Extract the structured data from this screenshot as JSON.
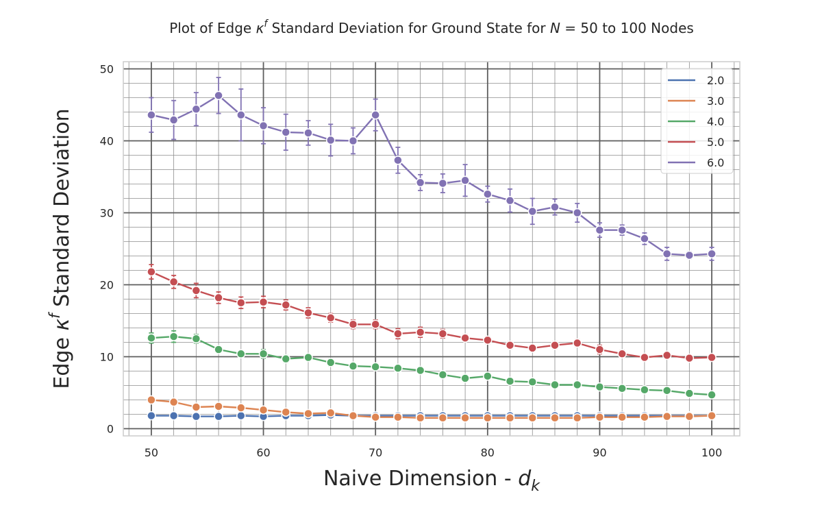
{
  "chart_data": {
    "type": "line",
    "title": {
      "prefix": "Plot of Edge ",
      "kappa": "κ",
      "sup": "f",
      "middle": " Standard Deviation for Ground State for ",
      "n_symbol": "N",
      "suffix": " = 50 to 100 Nodes"
    },
    "xlabel": {
      "text": "Naive Dimension - ",
      "var": "d",
      "sub": "k"
    },
    "ylabel": {
      "prefix": "Edge ",
      "kappa": "κ",
      "sup": "f",
      "suffix": " Standard Deviation"
    },
    "xlim": [
      47.5,
      102.5
    ],
    "ylim": [
      -1,
      51
    ],
    "x_major_ticks": [
      50,
      60,
      70,
      80,
      90,
      100
    ],
    "y_major_ticks": [
      0,
      10,
      20,
      30,
      40,
      50
    ],
    "x_minor_step": 2,
    "y_minor_step": 2,
    "grid": true,
    "legend_position": "top-right",
    "x": [
      50,
      52,
      54,
      56,
      58,
      60,
      62,
      64,
      66,
      68,
      70,
      72,
      74,
      76,
      78,
      80,
      82,
      84,
      86,
      88,
      90,
      92,
      94,
      96,
      98,
      100
    ],
    "series": [
      {
        "name": "2.0",
        "color": "#4c72b0",
        "values": [
          1.8,
          1.8,
          1.7,
          1.7,
          1.8,
          1.7,
          1.8,
          1.8,
          1.9,
          1.8,
          1.8,
          1.8,
          1.8,
          1.8,
          1.8,
          1.8,
          1.8,
          1.8,
          1.8,
          1.8,
          1.8,
          1.8,
          1.8,
          1.8,
          1.8,
          1.8
        ],
        "errors": [
          0.1,
          0.1,
          0.1,
          0.1,
          0.1,
          0.1,
          0.1,
          0.1,
          0.1,
          0.1,
          0.1,
          0.1,
          0.1,
          0.1,
          0.1,
          0.1,
          0.1,
          0.1,
          0.1,
          0.1,
          0.1,
          0.1,
          0.1,
          0.1,
          0.1,
          0.1
        ]
      },
      {
        "name": "3.0",
        "color": "#dd8452",
        "values": [
          4.0,
          3.7,
          3.0,
          3.1,
          2.9,
          2.6,
          2.3,
          2.1,
          2.2,
          1.8,
          1.6,
          1.6,
          1.5,
          1.5,
          1.5,
          1.5,
          1.5,
          1.5,
          1.5,
          1.5,
          1.6,
          1.6,
          1.6,
          1.7,
          1.7,
          1.8
        ],
        "errors": [
          0.3,
          0.4,
          0.3,
          0.3,
          0.3,
          0.3,
          0.3,
          0.3,
          0.3,
          0.2,
          0.2,
          0.2,
          0.2,
          0.2,
          0.2,
          0.2,
          0.2,
          0.2,
          0.2,
          0.2,
          0.2,
          0.2,
          0.2,
          0.2,
          0.2,
          0.2
        ]
      },
      {
        "name": "4.0",
        "color": "#55a868",
        "values": [
          12.6,
          12.8,
          12.5,
          11.0,
          10.4,
          10.4,
          9.7,
          9.9,
          9.2,
          8.7,
          8.6,
          8.4,
          8.1,
          7.5,
          7.0,
          7.3,
          6.6,
          6.5,
          6.1,
          6.1,
          5.8,
          5.6,
          5.4,
          5.3,
          4.9,
          4.7
        ],
        "errors": [
          0.7,
          0.8,
          0.6,
          0.4,
          0.4,
          0.6,
          0.5,
          0.4,
          0.5,
          0.4,
          0.4,
          0.4,
          0.4,
          0.4,
          0.3,
          0.4,
          0.4,
          0.3,
          0.3,
          0.3,
          0.3,
          0.3,
          0.3,
          0.3,
          0.3,
          0.3
        ]
      },
      {
        "name": "5.0",
        "color": "#c44e52",
        "values": [
          21.8,
          20.4,
          19.2,
          18.2,
          17.5,
          17.6,
          17.2,
          16.1,
          15.4,
          14.5,
          14.5,
          13.2,
          13.4,
          13.2,
          12.6,
          12.3,
          11.6,
          11.2,
          11.6,
          11.9,
          11.0,
          10.4,
          9.9,
          10.2,
          9.8,
          9.9
        ],
        "errors": [
          1.0,
          0.9,
          1.0,
          0.8,
          0.8,
          0.8,
          0.7,
          0.7,
          0.6,
          0.6,
          0.6,
          0.7,
          0.7,
          0.6,
          0.5,
          0.5,
          0.5,
          0.4,
          0.5,
          0.5,
          0.6,
          0.5,
          0.4,
          0.4,
          0.4,
          0.4
        ]
      },
      {
        "name": "6.0",
        "color": "#8172b3",
        "values": [
          43.6,
          42.9,
          44.4,
          46.3,
          43.6,
          42.1,
          41.2,
          41.1,
          40.1,
          40.0,
          43.6,
          37.3,
          34.2,
          34.1,
          34.5,
          32.6,
          31.7,
          30.2,
          30.8,
          30.0,
          27.6,
          27.6,
          26.4,
          24.3,
          24.1,
          24.3
        ],
        "errors": [
          2.4,
          2.7,
          2.3,
          2.5,
          3.6,
          2.5,
          2.5,
          1.7,
          2.2,
          1.8,
          2.2,
          1.8,
          1.1,
          1.3,
          2.2,
          1.1,
          1.6,
          1.8,
          1.1,
          1.3,
          1.0,
          0.7,
          0.8,
          0.9,
          0.5,
          0.9
        ]
      }
    ]
  }
}
